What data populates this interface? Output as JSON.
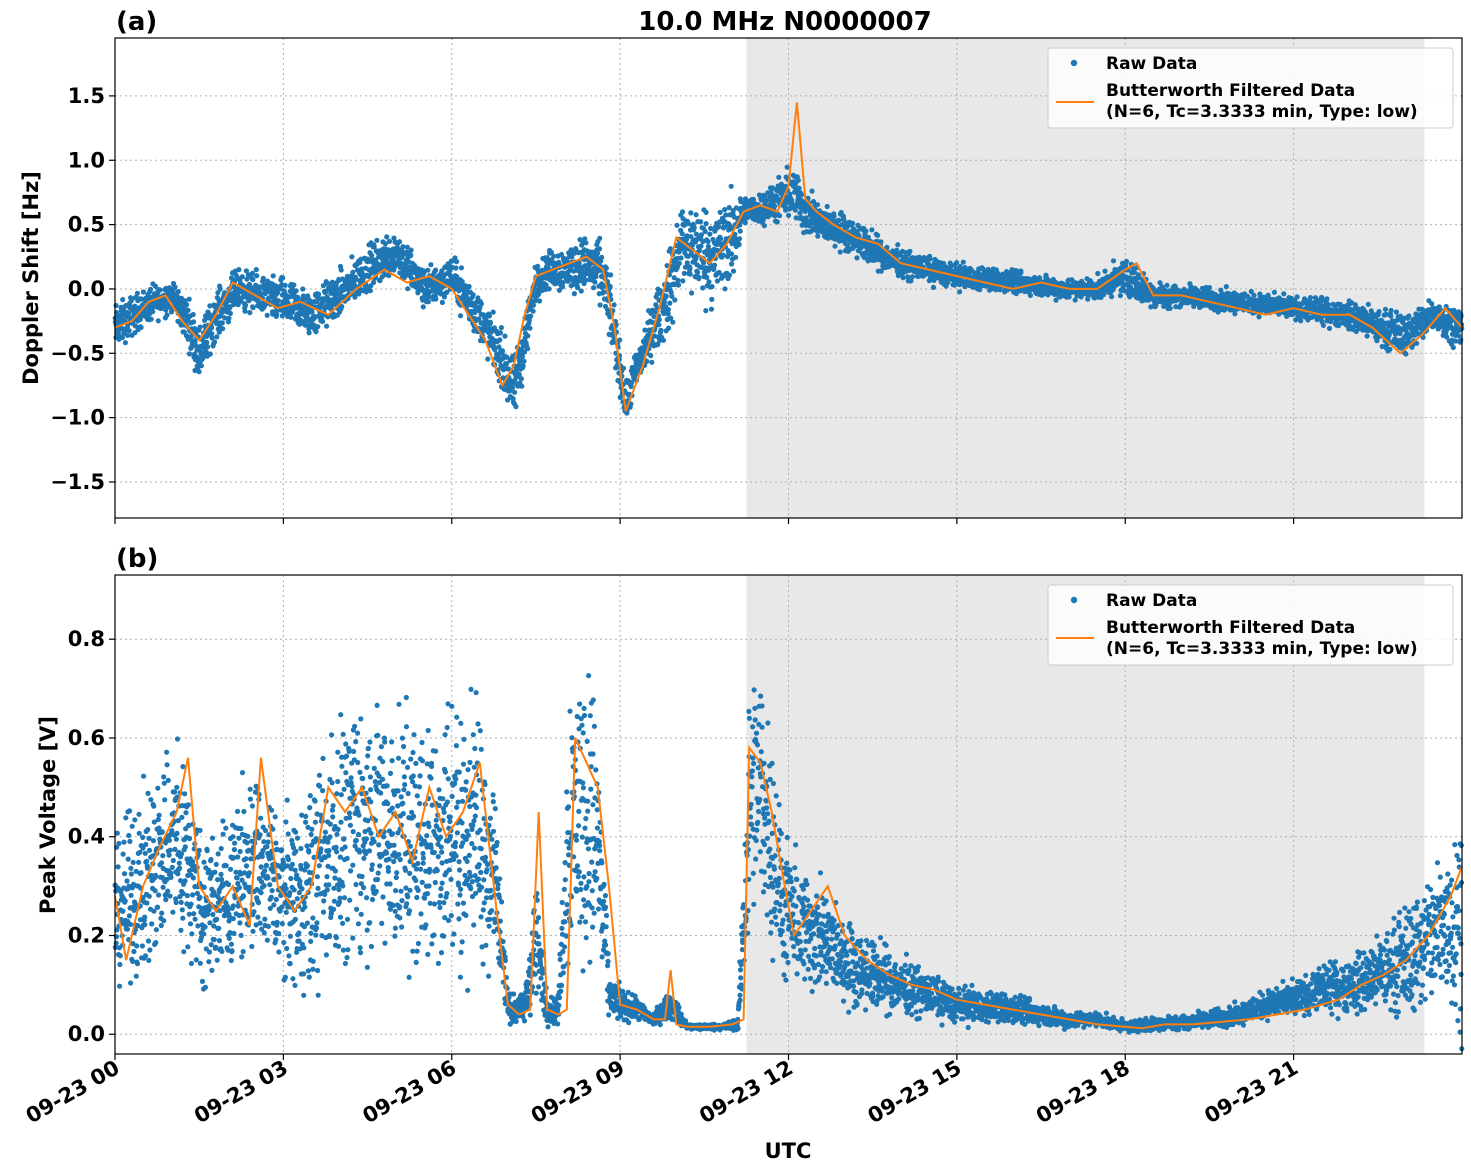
{
  "figure": {
    "title": "10.0 MHz N0000007",
    "xlabel": "UTC"
  },
  "colors": {
    "raw": "#1f77b4",
    "filtered": "#ff7f0e",
    "shade": "#e8e8e8",
    "grid": "#b0b0b0"
  },
  "chart_data": [
    {
      "type": "scatter",
      "panel_label": "(a)",
      "ylabel": "Doppler Shift [Hz]",
      "ylim": [
        -1.78,
        1.95
      ],
      "yticks": [
        -1.5,
        -1.0,
        -0.5,
        0.0,
        0.5,
        1.0,
        1.5
      ],
      "ytick_labels": [
        "−1.5",
        "−1.0",
        "−0.5",
        "0.0",
        "0.5",
        "1.0",
        "1.5"
      ],
      "xlim_hours": [
        0,
        24
      ],
      "shaded_region_hours": [
        11.25,
        23.33
      ],
      "grid": true,
      "legend": {
        "position": "top-right",
        "entries": [
          "Raw Data",
          "Butterworth Filtered Data",
          "(N=6, Tc=3.3333 min, Type: low)"
        ]
      },
      "series": [
        {
          "name": "Raw Data",
          "style": "points",
          "x_hours": [
            0,
            0.5,
            1,
            1.3,
            1.5,
            1.8,
            2.2,
            2.6,
            3,
            3.5,
            4,
            4.5,
            5,
            5.5,
            6,
            6.3,
            6.6,
            6.9,
            7.1,
            7.3,
            7.5,
            7.7,
            8,
            8.4,
            8.7,
            8.9,
            9.1,
            9.3,
            9.6,
            9.9,
            10.1,
            10.4,
            10.7,
            11,
            11.2,
            11.4,
            11.7,
            11.9,
            12.1,
            12.3,
            12.6,
            13,
            13.5,
            14,
            15,
            16,
            17,
            17.5,
            18,
            18.5,
            19,
            20,
            21,
            22,
            22.5,
            23,
            23.5,
            24
          ],
          "y_center": [
            -0.3,
            -0.15,
            -0.05,
            -0.25,
            -0.5,
            -0.2,
            0.0,
            -0.05,
            -0.1,
            -0.2,
            -0.05,
            0.15,
            0.3,
            0.0,
            0.1,
            -0.1,
            -0.3,
            -0.55,
            -0.8,
            -0.4,
            0.05,
            0.15,
            0.15,
            0.2,
            0.1,
            -0.35,
            -0.9,
            -0.6,
            -0.3,
            0.0,
            0.35,
            0.3,
            0.25,
            0.4,
            0.6,
            0.62,
            0.65,
            0.7,
            0.75,
            0.6,
            0.5,
            0.45,
            0.3,
            0.2,
            0.1,
            0.05,
            0.0,
            0.0,
            0.1,
            -0.05,
            -0.05,
            -0.1,
            -0.15,
            -0.2,
            -0.3,
            -0.35,
            -0.2,
            -0.3
          ],
          "y_spread": [
            0.25,
            0.2,
            0.18,
            0.25,
            0.3,
            0.25,
            0.22,
            0.22,
            0.25,
            0.25,
            0.25,
            0.25,
            0.25,
            0.22,
            0.22,
            0.25,
            0.28,
            0.3,
            0.35,
            0.35,
            0.2,
            0.2,
            0.25,
            0.3,
            0.35,
            0.35,
            0.2,
            0.25,
            0.3,
            0.45,
            0.5,
            0.5,
            0.55,
            0.5,
            0.15,
            0.15,
            0.2,
            0.25,
            0.3,
            0.25,
            0.2,
            0.2,
            0.18,
            0.15,
            0.13,
            0.12,
            0.12,
            0.12,
            0.2,
            0.15,
            0.12,
            0.12,
            0.12,
            0.15,
            0.2,
            0.22,
            0.2,
            0.2
          ]
        },
        {
          "name": "Butterworth Filtered Data",
          "style": "line",
          "x_hours": [
            0,
            0.3,
            0.6,
            0.9,
            1.2,
            1.5,
            1.8,
            2.1,
            2.5,
            2.9,
            3.3,
            3.8,
            4.3,
            4.8,
            5.2,
            5.6,
            6,
            6.3,
            6.6,
            6.9,
            7.1,
            7.3,
            7.5,
            7.8,
            8.1,
            8.4,
            8.7,
            8.9,
            9.1,
            9.4,
            9.7,
            10,
            10.3,
            10.6,
            10.9,
            11.2,
            11.5,
            11.8,
            12,
            12.15,
            12.3,
            12.5,
            12.8,
            13.2,
            13.6,
            14,
            14.5,
            15,
            15.5,
            16,
            16.5,
            17,
            17.5,
            18,
            18.2,
            18.5,
            19,
            19.5,
            20,
            20.5,
            21,
            21.5,
            22,
            22.4,
            22.9,
            23.3,
            23.7,
            24
          ],
          "y": [
            -0.3,
            -0.25,
            -0.1,
            -0.05,
            -0.25,
            -0.4,
            -0.2,
            0.05,
            -0.05,
            -0.15,
            -0.1,
            -0.2,
            0.0,
            0.15,
            0.05,
            0.1,
            0.0,
            -0.2,
            -0.4,
            -0.75,
            -0.6,
            -0.2,
            0.1,
            0.15,
            0.2,
            0.25,
            0.15,
            -0.3,
            -0.95,
            -0.6,
            -0.15,
            0.4,
            0.3,
            0.2,
            0.35,
            0.6,
            0.65,
            0.6,
            0.8,
            1.45,
            0.7,
            0.6,
            0.5,
            0.4,
            0.35,
            0.2,
            0.15,
            0.1,
            0.05,
            0.0,
            0.05,
            0.0,
            0.0,
            0.15,
            0.2,
            -0.05,
            -0.05,
            -0.1,
            -0.15,
            -0.2,
            -0.15,
            -0.2,
            -0.2,
            -0.3,
            -0.5,
            -0.35,
            -0.15,
            -0.3
          ]
        }
      ]
    },
    {
      "type": "scatter",
      "panel_label": "(b)",
      "ylabel": "Peak Voltage [V]",
      "ylim": [
        -0.04,
        0.93
      ],
      "yticks": [
        0.0,
        0.2,
        0.4,
        0.6,
        0.8
      ],
      "ytick_labels": [
        "0.0",
        "0.2",
        "0.4",
        "0.6",
        "0.8"
      ],
      "xlim_hours": [
        0,
        24
      ],
      "xticks_hours": [
        0,
        3,
        6,
        9,
        12,
        15,
        18,
        21
      ],
      "xtick_labels": [
        "09-23 00",
        "09-23 03",
        "09-23 06",
        "09-23 09",
        "09-23 12",
        "09-23 15",
        "09-23 18",
        "09-23 21"
      ],
      "shaded_region_hours": [
        11.25,
        23.33
      ],
      "grid": true,
      "legend": {
        "position": "top-right",
        "entries": [
          "Raw Data",
          "Butterworth Filtered Data",
          "(N=6, Tc=3.3333 min, Type: low)"
        ]
      },
      "series": [
        {
          "name": "Raw Data",
          "style": "points",
          "x_hours": [
            0,
            0.5,
            1,
            1.3,
            1.6,
            2,
            2.5,
            3,
            3.5,
            4,
            4.5,
            5,
            5.5,
            6,
            6.5,
            6.8,
            7,
            7.3,
            7.5,
            7.7,
            7.9,
            8.1,
            8.4,
            8.6,
            8.8,
            9,
            9.3,
            9.6,
            9.9,
            10.2,
            10.5,
            10.8,
            11.1,
            11.3,
            11.5,
            11.7,
            11.9,
            12.2,
            12.5,
            13,
            13.5,
            14,
            14.5,
            15,
            16,
            17,
            17.5,
            18,
            18.5,
            19,
            19.5,
            20,
            20.5,
            21,
            21.5,
            22,
            22.5,
            23,
            23.5,
            24
          ],
          "y_center": [
            0.25,
            0.3,
            0.4,
            0.35,
            0.25,
            0.28,
            0.35,
            0.28,
            0.3,
            0.4,
            0.42,
            0.4,
            0.38,
            0.4,
            0.42,
            0.3,
            0.05,
            0.05,
            0.2,
            0.05,
            0.05,
            0.45,
            0.45,
            0.4,
            0.08,
            0.06,
            0.05,
            0.03,
            0.06,
            0.015,
            0.015,
            0.015,
            0.02,
            0.45,
            0.5,
            0.4,
            0.25,
            0.22,
            0.2,
            0.15,
            0.12,
            0.1,
            0.08,
            0.06,
            0.05,
            0.03,
            0.03,
            0.015,
            0.02,
            0.025,
            0.03,
            0.04,
            0.06,
            0.07,
            0.09,
            0.1,
            0.12,
            0.15,
            0.2,
            0.25
          ],
          "y_spread": [
            0.2,
            0.25,
            0.3,
            0.28,
            0.2,
            0.22,
            0.25,
            0.22,
            0.3,
            0.35,
            0.35,
            0.35,
            0.35,
            0.38,
            0.35,
            0.3,
            0.04,
            0.04,
            0.2,
            0.04,
            0.04,
            0.42,
            0.42,
            0.38,
            0.06,
            0.05,
            0.03,
            0.02,
            0.04,
            0.008,
            0.008,
            0.008,
            0.02,
            0.35,
            0.35,
            0.3,
            0.2,
            0.18,
            0.16,
            0.12,
            0.1,
            0.08,
            0.06,
            0.05,
            0.04,
            0.025,
            0.02,
            0.015,
            0.02,
            0.02,
            0.025,
            0.03,
            0.04,
            0.05,
            0.06,
            0.08,
            0.1,
            0.15,
            0.2,
            0.3
          ]
        },
        {
          "name": "Butterworth Filtered Data",
          "style": "line",
          "x_hours": [
            0,
            0.2,
            0.5,
            0.8,
            1.1,
            1.3,
            1.5,
            1.8,
            2.1,
            2.4,
            2.6,
            2.9,
            3.2,
            3.5,
            3.8,
            4.1,
            4.4,
            4.7,
            5,
            5.3,
            5.6,
            5.9,
            6.2,
            6.5,
            6.8,
            7,
            7.2,
            7.4,
            7.55,
            7.7,
            7.9,
            8.05,
            8.2,
            8.4,
            8.6,
            8.8,
            9,
            9.3,
            9.6,
            9.8,
            9.9,
            10,
            10.2,
            10.6,
            11,
            11.2,
            11.3,
            11.5,
            11.7,
            11.9,
            12.1,
            12.4,
            12.7,
            13,
            13.4,
            13.8,
            14.2,
            14.6,
            15,
            15.5,
            16,
            16.5,
            17,
            17.5,
            18,
            18.3,
            18.7,
            19.2,
            19.7,
            20.2,
            20.7,
            21.2,
            21.5,
            21.8,
            22.2,
            22.6,
            23,
            23.4,
            23.8,
            24
          ],
          "y": [
            0.28,
            0.15,
            0.3,
            0.38,
            0.45,
            0.56,
            0.3,
            0.25,
            0.3,
            0.22,
            0.56,
            0.3,
            0.25,
            0.3,
            0.5,
            0.45,
            0.5,
            0.4,
            0.45,
            0.35,
            0.5,
            0.4,
            0.45,
            0.55,
            0.25,
            0.06,
            0.04,
            0.05,
            0.45,
            0.05,
            0.04,
            0.05,
            0.6,
            0.55,
            0.5,
            0.3,
            0.06,
            0.05,
            0.03,
            0.03,
            0.13,
            0.02,
            0.015,
            0.015,
            0.02,
            0.03,
            0.58,
            0.55,
            0.45,
            0.32,
            0.2,
            0.25,
            0.3,
            0.2,
            0.15,
            0.12,
            0.1,
            0.09,
            0.07,
            0.06,
            0.05,
            0.04,
            0.03,
            0.02,
            0.015,
            0.012,
            0.02,
            0.02,
            0.025,
            0.03,
            0.04,
            0.05,
            0.06,
            0.07,
            0.1,
            0.12,
            0.15,
            0.2,
            0.28,
            0.34
          ]
        }
      ]
    }
  ]
}
